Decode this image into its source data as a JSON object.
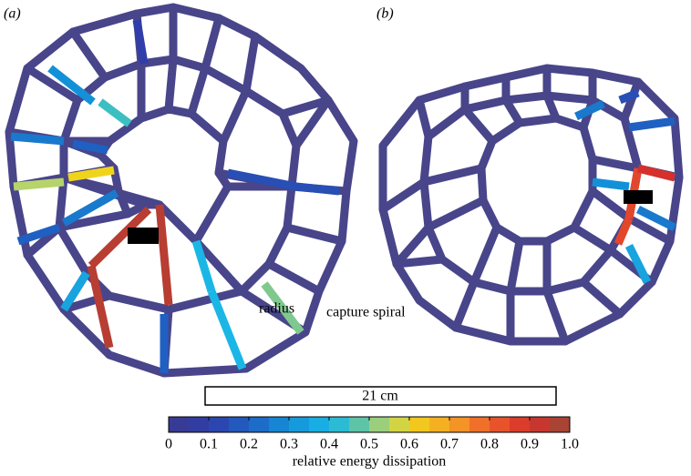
{
  "panels": [
    {
      "label": "(a)",
      "segment_values": [
        0.1,
        0.3,
        0.45,
        0.25,
        0.2,
        0.55,
        0.6,
        0.25,
        0.2,
        0.95,
        0.95,
        0.95,
        0.35,
        0.2,
        0.4,
        0.4,
        0.5,
        0.15,
        0.15
      ]
    },
    {
      "label": "(b)",
      "segment_values": [
        0.85,
        0.85,
        0.9,
        0.35,
        0.3,
        0.25,
        0.2,
        0.25,
        0.15
      ]
    }
  ],
  "annotations": {
    "radius": "radius",
    "capture_spiral": "capture spiral"
  },
  "scale_bar": {
    "label": "21 cm"
  },
  "colorbar": {
    "lim": [
      0,
      1
    ],
    "ticks": [
      0,
      0.1,
      0.2,
      0.3,
      0.4,
      0.5,
      0.6,
      0.7,
      0.8,
      0.9,
      {
        "value": 1,
        "label": "1.0"
      }
    ],
    "label": "relative energy dissipation"
  }
}
